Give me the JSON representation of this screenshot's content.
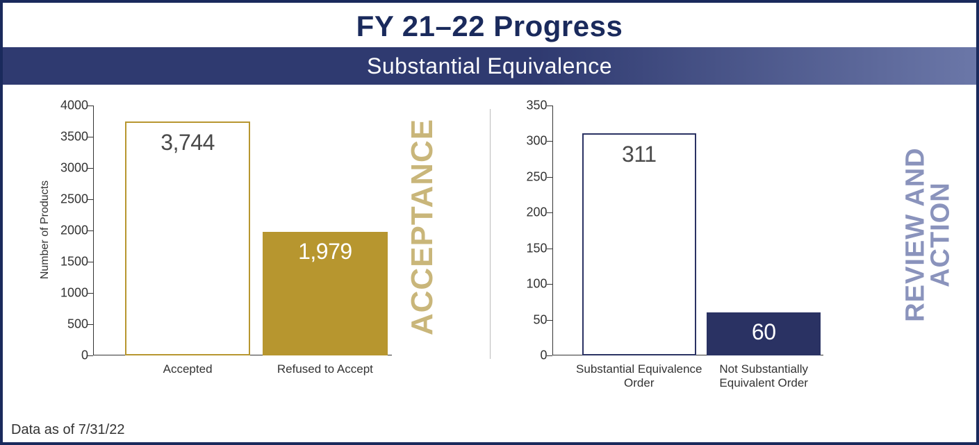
{
  "header": {
    "title": "FY 21–22 Progress",
    "subtitle": "Substantial Equivalence",
    "title_color": "#1a2a5c",
    "title_fontsize": 42,
    "subtitle_bg_gradient_from": "#2f3a70",
    "subtitle_bg_gradient_to": "#6b77a8",
    "subtitle_color": "#ffffff",
    "subtitle_fontsize": 32
  },
  "border_color": "#1a2a5c",
  "background_color": "#ffffff",
  "footer": {
    "text": "Data as of 7/31/22",
    "color": "#333333",
    "fontsize": 20
  },
  "divider_color": "#bbbbbb",
  "left_chart": {
    "type": "bar",
    "side_label": "ACCEPTANCE",
    "side_label_color": "#c9b67a",
    "side_label_fontsize": 44,
    "y_label": "Number of Products",
    "y_label_fontsize": 16,
    "ylim": [
      0,
      4000
    ],
    "ytick_step": 500,
    "yticks": [
      "0",
      "500",
      "1000",
      "1500",
      "2000",
      "2500",
      "3000",
      "3500",
      "4000"
    ],
    "axis_color": "#333333",
    "tick_fontsize": 18,
    "bar_width_ratio": 0.42,
    "bar_gap_ratio": 0.04,
    "bars": [
      {
        "category": "Accepted",
        "value": 3744,
        "display_value": "3,744",
        "fill_color": "#ffffff",
        "border_color": "#b7962f",
        "border_width": 2,
        "value_color": "#4a4a4a",
        "value_position": "inside-top"
      },
      {
        "category": "Refused to Accept",
        "value": 1979,
        "display_value": "1,979",
        "fill_color": "#b7962f",
        "border_color": "#b7962f",
        "border_width": 0,
        "value_color": "#ffffff",
        "value_position": "inside-top"
      }
    ],
    "category_fontsize": 17,
    "value_fontsize": 32
  },
  "right_chart": {
    "type": "bar",
    "side_label": "REVIEW AND\nACTION",
    "side_label_color": "#8a93bc",
    "side_label_fontsize": 38,
    "y_label": "",
    "ylim": [
      0,
      350
    ],
    "ytick_step": 50,
    "yticks": [
      "0",
      "50",
      "100",
      "150",
      "200",
      "250",
      "300",
      "350"
    ],
    "axis_color": "#333333",
    "tick_fontsize": 18,
    "bar_width_ratio": 0.42,
    "bar_gap_ratio": 0.04,
    "bars": [
      {
        "category": "Substantial Equivalence Order",
        "value": 311,
        "display_value": "311",
        "fill_color": "#ffffff",
        "border_color": "#2a3263",
        "border_width": 2,
        "value_color": "#4a4a4a",
        "value_position": "inside-top"
      },
      {
        "category": "Not Substantially Equivalent Order",
        "value": 60,
        "display_value": "60",
        "fill_color": "#2a3263",
        "border_color": "#2a3263",
        "border_width": 0,
        "value_color": "#ffffff",
        "value_position": "inside-top"
      }
    ],
    "category_fontsize": 17,
    "value_fontsize": 32
  }
}
